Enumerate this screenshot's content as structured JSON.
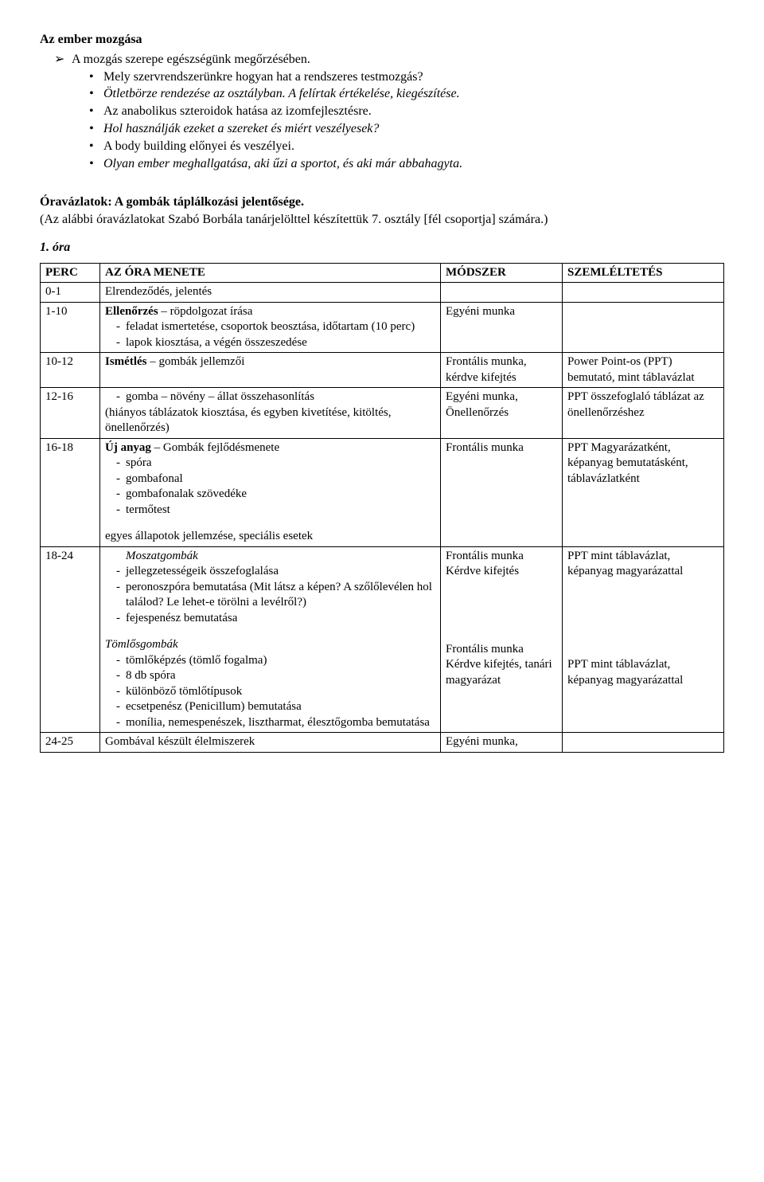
{
  "head": {
    "title": "Az ember mozgása",
    "arrow_item": "A mozgás szerepe egészségünk megőrzésében.",
    "bullets": [
      {
        "text": "Mely szervrendszerünkre hogyan hat a rendszeres testmozgás?",
        "italic": false
      },
      {
        "text": "Ötletbörze rendezése az osztályban. A felírtak értékelése, kiegészítése.",
        "italic": true
      }
    ],
    "bullets2": [
      {
        "text": "Az anabolikus szteroidok hatása az izomfejlesztésre.",
        "italic": false
      },
      {
        "text": "Hol használják ezeket a szereket és miért veszélyesek?",
        "italic": true
      }
    ],
    "bullets3": [
      {
        "text": "A body building előnyei és veszélyei.",
        "italic": false
      },
      {
        "text": "Olyan ember meghallgatása, aki űzi a sportot, és aki már abbahagyta.",
        "italic": true
      }
    ]
  },
  "section": {
    "title": "Óravázlatok: A gombák táplálkozási jelentősége.",
    "sub": "(Az alábbi óravázlatokat Szabó Borbála tanárjelölttel készítettük 7. osztály [fél csoportja] számára.)",
    "lesson": "1. óra"
  },
  "table": {
    "headers": [
      "PERC",
      "AZ ÓRA MENETE",
      "MÓDSZER",
      "SZEMLÉLTETÉS"
    ],
    "rows": [
      {
        "perc": "0-1",
        "menete": {
          "plain": "Elrendeződés, jelentés"
        },
        "method": "",
        "ill": ""
      },
      {
        "perc": "1-10",
        "menete": {
          "lead_bold": "Ellenőrzés",
          "lead_rest": " – röpdolgozat írása",
          "dash": [
            "feladat ismertetése, csoportok beosztása, időtartam (10 perc)",
            "lapok kiosztása, a végén összeszedése"
          ]
        },
        "method": "Egyéni munka",
        "ill": ""
      },
      {
        "perc": "10-12",
        "menete": {
          "lead_bold": "Ismétlés",
          "lead_rest": " – gombák jellemzői"
        },
        "method": "Frontális munka, kérdve kifejtés",
        "ill": "Power Point-os (PPT) bemutató, mint táblavázlat"
      },
      {
        "perc": "12-16",
        "menete": {
          "dash_pre": [
            "gomba – növény – állat összehasonlítás"
          ],
          "plain": "(hiányos táblázatok kiosztása, és egyben kivetítése, kitöltés, önellenőrzés)"
        },
        "method": "Egyéni munka, Önellenőrzés",
        "ill": "PPT összefoglaló táblázat az önellenőrzéshez"
      },
      {
        "perc": "16-18",
        "menete": {
          "lead_bold": "Új anyag",
          "lead_rest": " – Gombák fejlődésmenete",
          "dash": [
            "spóra",
            "gombafonal",
            "gombafonalak szövedéke",
            "termőtest"
          ],
          "tail": "egyes állapotok jellemzése, speciális esetek"
        },
        "method": "Frontális munka",
        "ill": "PPT Magyarázatként, képanyag bemutatásként, táblavázlatként"
      },
      {
        "perc": "18-24",
        "menete": {
          "ital_center": "Moszatgombák",
          "dash": [
            "jellegzetességeik összefoglalása",
            "peronoszpóra bemutatása (Mit látsz a képen? A szőlőlevélen hol találod? Le lehet-e törölni a levélről?)",
            "fejespenész bemutatása"
          ],
          "gap": true,
          "ital2": "Tömlősgombák",
          "dash2": [
            "tömlőképzés (tömlő fogalma)",
            "8 db spóra",
            "különböző tömlőtípusok",
            "ecsetpenész (Penicillum) bemutatása",
            "monília, nemespenészek, lisztharmat, élesztőgomba bemutatása"
          ]
        },
        "method_html": "Frontális munka<br>Kérdve kifejtés<br><br><br><br><br>Frontális munka<br>Kérdve kifejtés, tanári magyarázat",
        "ill_html": "PPT mint táblavázlat, képanyag magyarázattal<br><br><br><br><br><br>PPT mint táblavázlat, képanyag magyarázattal"
      },
      {
        "perc": "24-25",
        "menete": {
          "plain": "Gombával készült élelmiszerek"
        },
        "method": "Egyéni munka,",
        "ill": ""
      }
    ]
  }
}
